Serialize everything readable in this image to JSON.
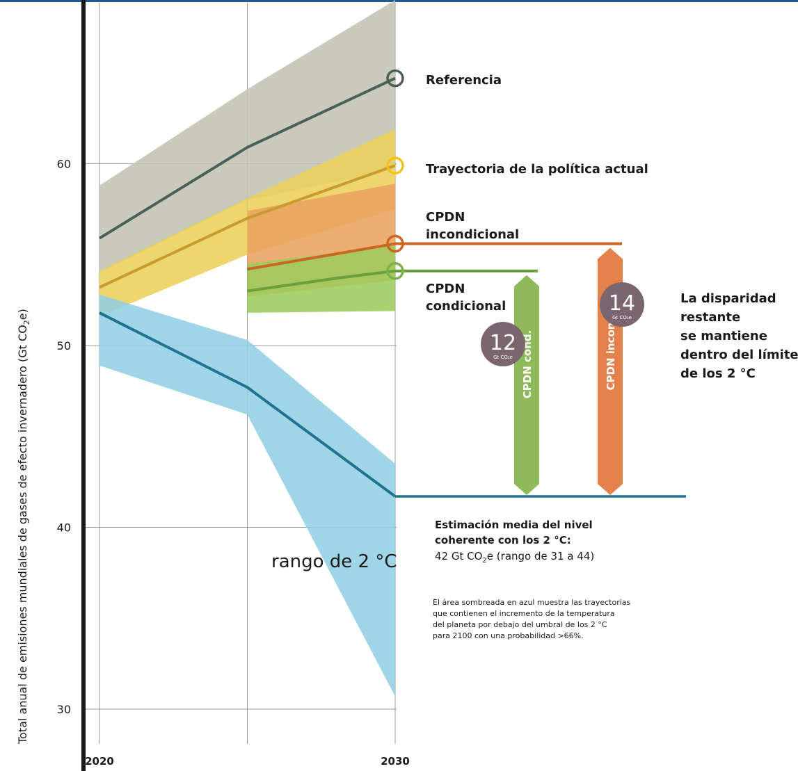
{
  "chart_data": {
    "type": "line",
    "title": "",
    "xlabel": "",
    "ylabel": "Total anual de emisiones mundiales de gases de efecto invernadero (Gt CO₂e)",
    "xlim": [
      2020,
      2030
    ],
    "ylim": [
      28,
      68
    ],
    "x_ticks": [
      "2020",
      "2030"
    ],
    "y_ticks": [
      30,
      40,
      50,
      60
    ],
    "series": [
      {
        "name": "Referencia",
        "color": "#4a5f58",
        "x": [
          2020,
          2025,
          2030
        ],
        "y": [
          55.9,
          60.9,
          64.7
        ],
        "band_color": "#c2c3b3",
        "band": {
          "x": [
            2020,
            2025,
            2030
          ],
          "upper": [
            58.8,
            64.1,
            69.0
          ],
          "lower": [
            54.0,
            58.0,
            59.7
          ]
        }
      },
      {
        "name": "Trayectoria de la política actual",
        "color": "#c99a2e",
        "x": [
          2020,
          2025,
          2030
        ],
        "y": [
          53.2,
          57.0,
          59.9
        ],
        "band_color": "#ead05a",
        "band": {
          "x": [
            2020,
            2025,
            2030
          ],
          "upper": [
            54.1,
            58.1,
            61.9
          ],
          "lower": [
            51.6,
            55.0,
            57.5
          ]
        }
      },
      {
        "name": "CPDN incondicional",
        "color": "#c8651f",
        "x": [
          2025,
          2030
        ],
        "y": [
          54.2,
          55.6
        ],
        "band_color": "#e9a25e",
        "band": {
          "x": [
            2025,
            2030
          ],
          "upper": [
            57.4,
            58.9
          ],
          "lower": [
            52.7,
            53.6
          ]
        }
      },
      {
        "name": "CPDN condicional",
        "color": "#6c9e39",
        "x": [
          2025,
          2028,
          2030
        ],
        "y": [
          53.0,
          53.7,
          54.1
        ],
        "band_color": "#9ccc5c",
        "band": {
          "x": [
            2025,
            2030
          ],
          "upper": [
            54.5,
            55.5
          ],
          "lower": [
            51.8,
            51.9
          ]
        }
      },
      {
        "name": "rango de 2 °C",
        "color": "#1f7390",
        "x": [
          2020,
          2025,
          2030
        ],
        "y": [
          51.8,
          47.7,
          41.7
        ],
        "band_color": "#92cfe2",
        "band": {
          "x": [
            2020,
            2025,
            2030
          ],
          "upper": [
            52.8,
            50.3,
            43.5
          ],
          "lower": [
            48.9,
            46.2,
            30.7
          ]
        }
      }
    ],
    "gap_bars": [
      {
        "label": "CPDN cond.",
        "value": "12",
        "unit": "Gt CO₂e",
        "from": 54.1,
        "to": 41.7,
        "color": "#8fba5a"
      },
      {
        "label": "CPDN incond.",
        "value": "14",
        "unit": "Gt CO₂e",
        "from": 55.6,
        "to": 41.7,
        "color": "#e4804a"
      }
    ],
    "grid": true
  },
  "labels": {
    "ref": "Referencia",
    "policy": "Trayectoria de la política actual",
    "uncond_1": "CPDN",
    "uncond_2": "incondicional",
    "cond_1": "CPDN",
    "cond_2": "condicional",
    "range2c": "rango de 2 °C",
    "gap_1": "La disparidad",
    "gap_2": "restante",
    "gap_3": "se mantiene",
    "gap_4": "dentro del límite",
    "gap_5": "de los 2 °C",
    "est_1": "Estimación media del nivel",
    "est_2": "coherente con los 2 °C:",
    "est_3a": "42 Gt CO",
    "est_3sub": "2",
    "est_3b": "e (rango de 31 a 44)",
    "note_1": "El área sombreada en azul muestra las trayectorias",
    "note_2": "que contienen el incremento de la temperatura",
    "note_3": "del planeta por debajo del umbral de los 2 °C",
    "note_4": "para 2100 con una probabilidad >66%.",
    "badge_unit": "Gt CO₂e",
    "ylabel_main": "Total anual de emisiones mundiales de gases de efecto invernadero (Gt CO",
    "ylabel_sub": "2",
    "ylabel_end": "e)"
  }
}
